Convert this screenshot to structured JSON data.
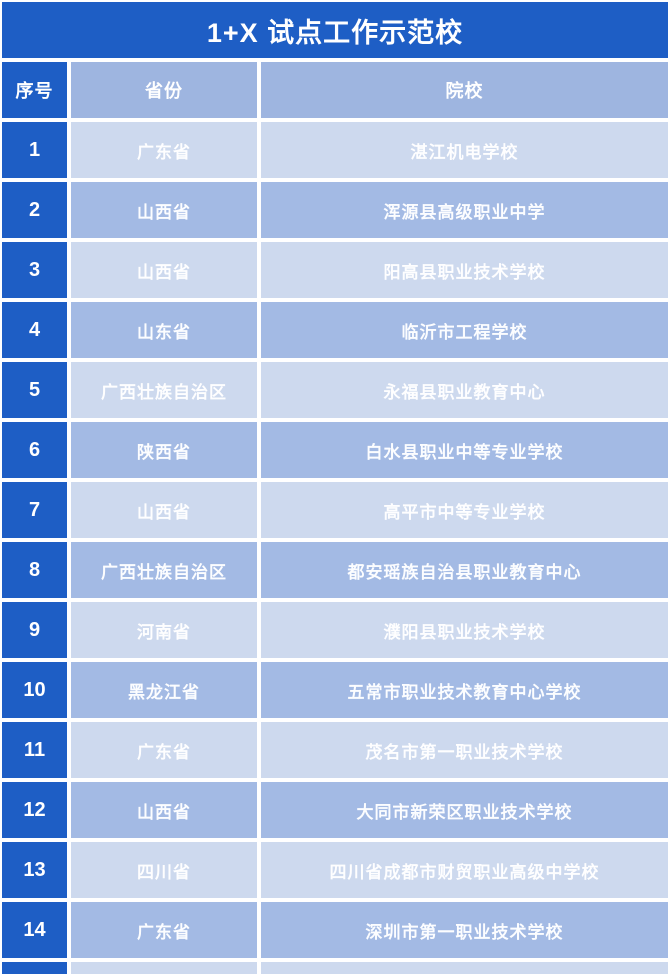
{
  "title": "1+X 试点工作示范校",
  "colors": {
    "dark_blue": "#1e5ec5",
    "header_blue": "#9eb5e0",
    "row_light": "#cdd9ee",
    "row_medium": "#a3bae4",
    "text": "#ffffff",
    "gap": "#ffffff"
  },
  "table": {
    "headers": {
      "index": "序号",
      "province": "省份",
      "school": "院校"
    },
    "rows": [
      {
        "index": "1",
        "province": "广东省",
        "school": "湛江机电学校"
      },
      {
        "index": "2",
        "province": "山西省",
        "school": "浑源县高级职业中学"
      },
      {
        "index": "3",
        "province": "山西省",
        "school": "阳高县职业技术学校"
      },
      {
        "index": "4",
        "province": "山东省",
        "school": "临沂市工程学校"
      },
      {
        "index": "5",
        "province": "广西壮族自治区",
        "school": "永福县职业教育中心"
      },
      {
        "index": "6",
        "province": "陕西省",
        "school": "白水县职业中等专业学校"
      },
      {
        "index": "7",
        "province": "山西省",
        "school": "高平市中等专业学校"
      },
      {
        "index": "8",
        "province": "广西壮族自治区",
        "school": "都安瑶族自治县职业教育中心"
      },
      {
        "index": "9",
        "province": "河南省",
        "school": "濮阳县职业技术学校"
      },
      {
        "index": "10",
        "province": "黑龙江省",
        "school": "五常市职业技术教育中心学校"
      },
      {
        "index": "11",
        "province": "广东省",
        "school": "茂名市第一职业技术学校"
      },
      {
        "index": "12",
        "province": "山西省",
        "school": "大同市新荣区职业技术学校"
      },
      {
        "index": "13",
        "province": "四川省",
        "school": "四川省成都市财贸职业高级中学校"
      },
      {
        "index": "14",
        "province": "广东省",
        "school": "深圳市第一职业技术学校"
      }
    ]
  }
}
